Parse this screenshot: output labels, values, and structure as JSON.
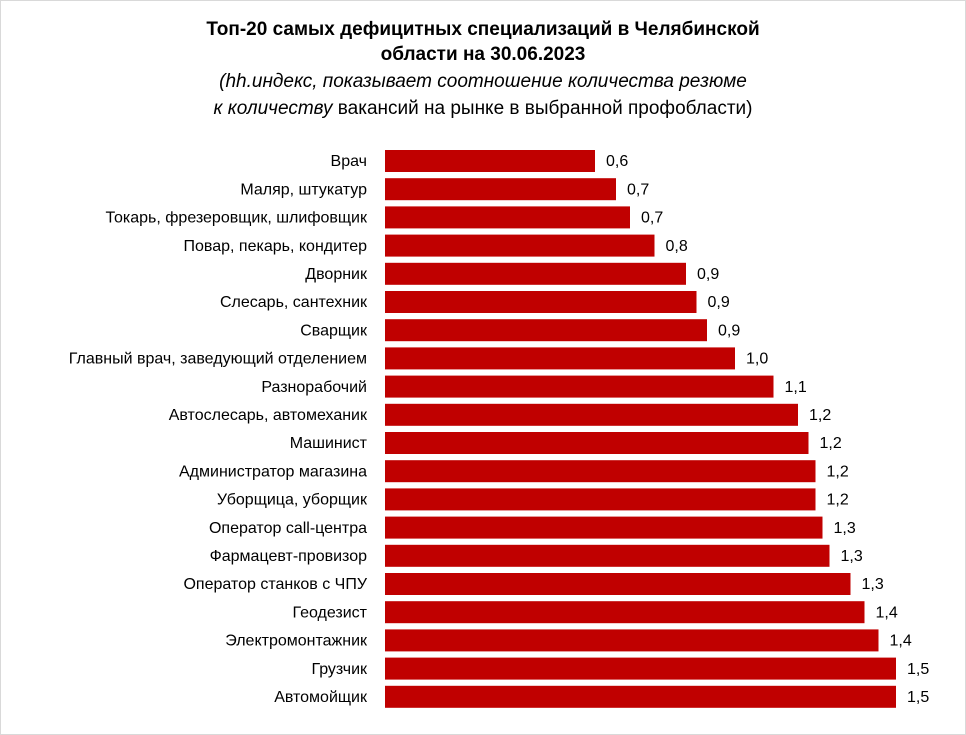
{
  "chart_data": {
    "type": "bar",
    "orientation": "horizontal",
    "title": [
      "Топ-20 самых дефицитных специализаций в Челябинской",
      "области на 30.06.2023"
    ],
    "subtitle": [
      "(hh.индекс, показывает соотношение количества резюме",
      "к количеству",
      " вакансий на рынке в выбранной профобласти)"
    ],
    "categories": [
      "Врач",
      "Маляр, штукатур",
      "Токарь, фрезеровщик, шлифовщик",
      "Повар, пекарь, кондитер",
      "Дворник",
      "Слесарь, сантехник",
      "Сварщик",
      "Главный врач, заведующий отделением",
      "Разнорабочий",
      "Автослесарь, автомеханик",
      "Машинист",
      "Администратор магазина",
      "Уборщица, уборщик",
      "Оператор call-центра",
      "Фармацевт-провизор",
      "Оператор станков с ЧПУ",
      "Геодезист",
      "Электромонтажник",
      "Грузчик",
      "Автомойщик"
    ],
    "values": [
      0.6,
      0.66,
      0.7,
      0.77,
      0.86,
      0.89,
      0.92,
      1.0,
      1.11,
      1.18,
      1.21,
      1.23,
      1.23,
      1.25,
      1.27,
      1.33,
      1.37,
      1.41,
      1.46,
      1.46
    ],
    "value_labels": [
      "0,6",
      "0,7",
      "0,7",
      "0,8",
      "0,9",
      "0,9",
      "0,9",
      "1,0",
      "1,1",
      "1,2",
      "1,2",
      "1,2",
      "1,2",
      "1,3",
      "1,3",
      "1,3",
      "1,4",
      "1,4",
      "1,5",
      "1,5"
    ],
    "color": "#c00000",
    "xlim": [
      0,
      1.6
    ]
  }
}
